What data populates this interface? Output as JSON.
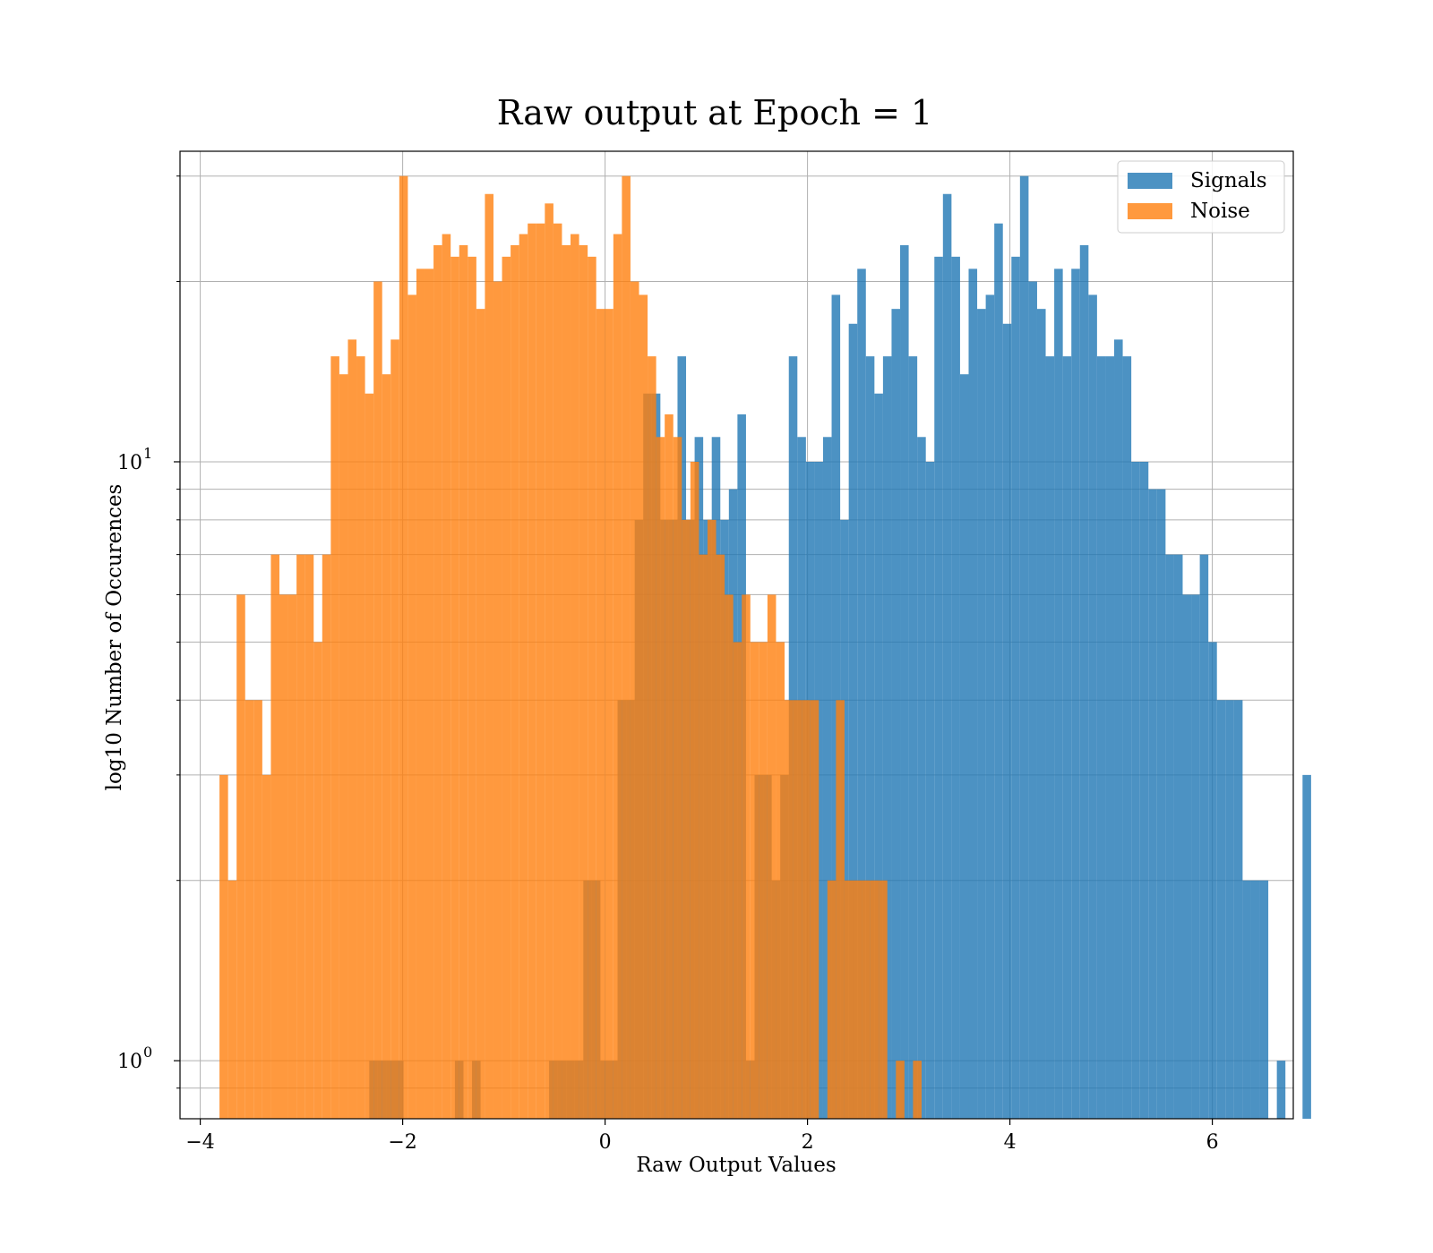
{
  "chart_data": {
    "type": "histogram",
    "title": "Raw output at Epoch = 1",
    "xlabel": "Raw Output Values",
    "ylabel": "log10 Number of Occurences",
    "xlim": [
      -4.2,
      6.8
    ],
    "ylim": [
      0.8,
      33
    ],
    "yscale": "log",
    "grid": true,
    "legend_position": "top-right",
    "x_ticks": [
      -4,
      -2,
      0,
      2,
      4,
      6
    ],
    "x_tick_labels": [
      "−4",
      "−2",
      "0",
      "2",
      "4",
      "6"
    ],
    "y_major_ticks": [
      1,
      10
    ],
    "y_minor_ticks": [
      0.9,
      2,
      3,
      4,
      5,
      6,
      7,
      8,
      9,
      20,
      30
    ],
    "y_tick_labels": [
      {
        "value": 1,
        "base": "10",
        "exp": "0"
      },
      {
        "value": 10,
        "base": "10",
        "exp": "1"
      }
    ],
    "bin_width": 0.0846,
    "series": [
      {
        "name": "Signals",
        "color": "#1f77b4",
        "opacity": 0.8,
        "start": -2.33,
        "counts": [
          1,
          1,
          1,
          1,
          0,
          0,
          0,
          0,
          0,
          0,
          1,
          0,
          1,
          0,
          0,
          0,
          0,
          0,
          0,
          0,
          0,
          1,
          1,
          1,
          1,
          2,
          2,
          1,
          1,
          4,
          4,
          8,
          13,
          13,
          8,
          8,
          15,
          8,
          11,
          8,
          11,
          8,
          9,
          12,
          1,
          3,
          3,
          2,
          3,
          15,
          11,
          10,
          10,
          11,
          19,
          8,
          17,
          21,
          15,
          13,
          15,
          18,
          23,
          15,
          11,
          10,
          22,
          28,
          22,
          14,
          21,
          18,
          19,
          25,
          17,
          22,
          30,
          20,
          18,
          15,
          21,
          15,
          21,
          23,
          19,
          15,
          15,
          16,
          15,
          10,
          10,
          9,
          9,
          7,
          7,
          6,
          6,
          7,
          5,
          4,
          4,
          4,
          2,
          2,
          2,
          0,
          1,
          0,
          0,
          3
        ]
      },
      {
        "name": "Noise",
        "color": "#ff7f0e",
        "opacity": 0.8,
        "start": -3.81,
        "counts": [
          3,
          2,
          6,
          4,
          4,
          3,
          7,
          6,
          6,
          7,
          7,
          5,
          7,
          15,
          14,
          16,
          15,
          13,
          20,
          14,
          16,
          30,
          19,
          21,
          21,
          23,
          24,
          22,
          23,
          22,
          18,
          28,
          20,
          22,
          23,
          24,
          25,
          25,
          27,
          25,
          23,
          24,
          23,
          22,
          18,
          18,
          24,
          30,
          20,
          19,
          15,
          11,
          12,
          11,
          8,
          10,
          7,
          8,
          7,
          6,
          5,
          6,
          5,
          5,
          6,
          5,
          4,
          4,
          4,
          4,
          0,
          2,
          4,
          2,
          2,
          2,
          2,
          2,
          0,
          1,
          0,
          1
        ]
      }
    ]
  }
}
